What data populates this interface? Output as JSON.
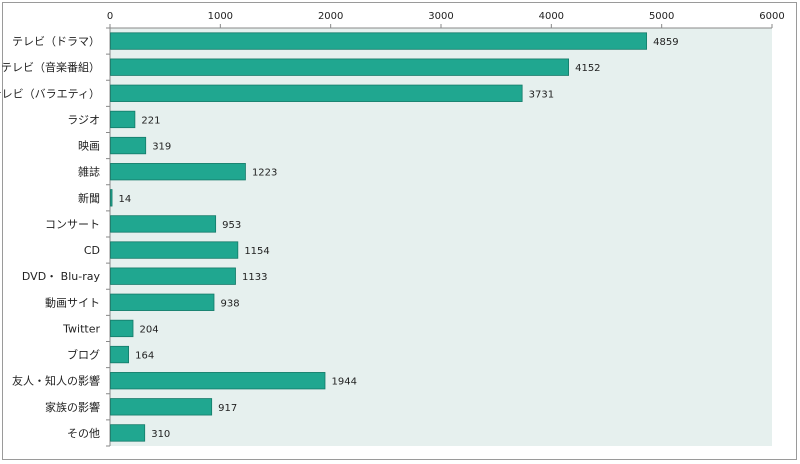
{
  "chart_data": {
    "type": "bar",
    "orientation": "horizontal",
    "categories": [
      "テレビ（ドラマ）",
      "テレビ（音楽番組）",
      "テレビ（バラエティ）",
      "ラジオ",
      "映画",
      "雑誌",
      "新聞",
      "コンサート",
      "CD",
      "DVD・ Blu-ray",
      "動画サイト",
      "Twitter",
      "ブログ",
      "友人・知人の影響",
      "家族の影響",
      "その他"
    ],
    "values": [
      4859,
      4152,
      3731,
      221,
      319,
      1223,
      14,
      953,
      1154,
      1133,
      938,
      204,
      164,
      1944,
      917,
      310
    ],
    "xlim": [
      0,
      6000
    ],
    "xticks": [
      0,
      1000,
      2000,
      3000,
      4000,
      5000,
      6000
    ],
    "x_axis_position": "top",
    "grid": false,
    "legend": "none",
    "data_labels": true,
    "title": "",
    "xlabel": "",
    "ylabel": "",
    "colors": {
      "bar": "#20a790",
      "bar_border": "#147a68",
      "plot_background": "#e6f0ee",
      "axis": "#888888"
    }
  }
}
